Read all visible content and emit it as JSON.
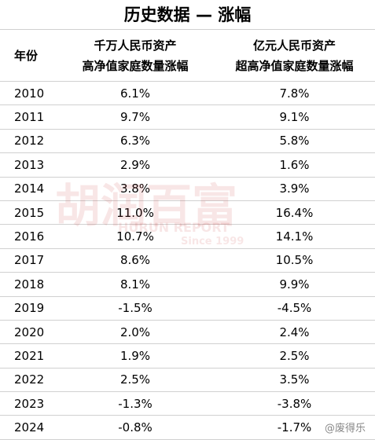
{
  "header": {
    "title": "历史数据 — 涨幅"
  },
  "table": {
    "columns": [
      {
        "lines": [
          "年份"
        ]
      },
      {
        "lines": [
          "千万人民币资产",
          "高净值家庭数量涨幅"
        ]
      },
      {
        "lines": [
          "亿元人民币资产",
          "超高净值家庭数量涨幅"
        ]
      }
    ],
    "rows": [
      [
        "2010",
        "6.1%",
        "7.8%"
      ],
      [
        "2011",
        "9.7%",
        "9.1%"
      ],
      [
        "2012",
        "6.3%",
        "5.8%"
      ],
      [
        "2013",
        "2.9%",
        "1.6%"
      ],
      [
        "2014",
        "3.8%",
        "3.9%"
      ],
      [
        "2015",
        "11.0%",
        "16.4%"
      ],
      [
        "2016",
        "10.7%",
        "14.1%"
      ],
      [
        "2017",
        "8.6%",
        "10.5%"
      ],
      [
        "2018",
        "8.1%",
        "9.9%"
      ],
      [
        "2019",
        "-1.5%",
        "-4.5%"
      ],
      [
        "2020",
        "2.0%",
        "2.4%"
      ],
      [
        "2021",
        "1.9%",
        "2.5%"
      ],
      [
        "2022",
        "2.5%",
        "3.5%"
      ],
      [
        "2023",
        "-1.3%",
        "-3.8%"
      ],
      [
        "2024",
        "-0.8%",
        "-1.7%"
      ]
    ]
  },
  "watermark": {
    "brand": "胡润百富",
    "report": "HURUN REPORT",
    "since": "Since 1999"
  },
  "attribution": "@废得乐"
}
